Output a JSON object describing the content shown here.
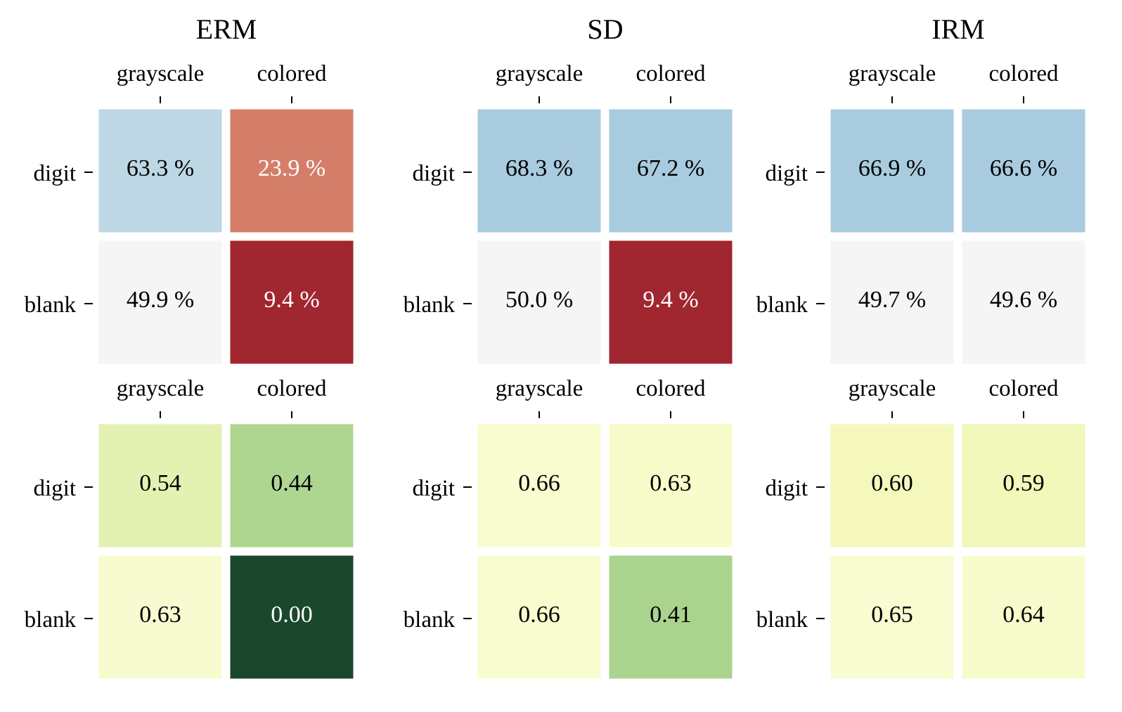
{
  "chart_data": [
    {
      "type": "heatmap",
      "title": "ERM",
      "xlabel": "",
      "ylabel": "",
      "columns": [
        "grayscale",
        "colored"
      ],
      "rows": [
        "digit",
        "blank"
      ],
      "values": [
        [
          63.3,
          23.9
        ],
        [
          49.9,
          9.4
        ]
      ],
      "cell_labels": [
        [
          "63.3 %",
          "23.9 %"
        ],
        [
          "49.9 %",
          "9.4 %"
        ]
      ],
      "cell_colors": [
        [
          "#bdd7e5",
          "#d47e69"
        ],
        [
          "#f5f5f5",
          "#a0262f"
        ]
      ],
      "text_colors": [
        [
          "#000000",
          "#ffffff"
        ],
        [
          "#000000",
          "#ffffff"
        ]
      ],
      "colormap": "diverging red-white-blue"
    },
    {
      "type": "heatmap",
      "title": "SD",
      "xlabel": "",
      "ylabel": "",
      "columns": [
        "grayscale",
        "colored"
      ],
      "rows": [
        "digit",
        "blank"
      ],
      "values": [
        [
          68.3,
          67.2
        ],
        [
          50.0,
          9.4
        ]
      ],
      "cell_labels": [
        [
          "68.3 %",
          "67.2 %"
        ],
        [
          "50.0 %",
          "9.4 %"
        ]
      ],
      "cell_colors": [
        [
          "#a8cbdf",
          "#a8cbdf"
        ],
        [
          "#f5f5f5",
          "#a0262f"
        ]
      ],
      "text_colors": [
        [
          "#000000",
          "#000000"
        ],
        [
          "#000000",
          "#ffffff"
        ]
      ],
      "colormap": "diverging red-white-blue"
    },
    {
      "type": "heatmap",
      "title": "IRM",
      "xlabel": "",
      "ylabel": "",
      "columns": [
        "grayscale",
        "colored"
      ],
      "rows": [
        "digit",
        "blank"
      ],
      "values": [
        [
          66.9,
          66.6
        ],
        [
          49.7,
          49.6
        ]
      ],
      "cell_labels": [
        [
          "66.9 %",
          "66.6 %"
        ],
        [
          "49.7 %",
          "49.6 %"
        ]
      ],
      "cell_colors": [
        [
          "#a8cbdf",
          "#a8cbdf"
        ],
        [
          "#f5f5f5",
          "#f5f5f5"
        ]
      ],
      "text_colors": [
        [
          "#000000",
          "#000000"
        ],
        [
          "#000000",
          "#000000"
        ]
      ],
      "colormap": "diverging red-white-blue"
    },
    {
      "type": "heatmap",
      "title": "",
      "xlabel": "",
      "ylabel": "",
      "columns": [
        "grayscale",
        "colored"
      ],
      "rows": [
        "digit",
        "blank"
      ],
      "values": [
        [
          0.54,
          0.44
        ],
        [
          0.63,
          0.0
        ]
      ],
      "cell_labels": [
        [
          "0.54",
          "0.44"
        ],
        [
          "0.63",
          "0.00"
        ]
      ],
      "cell_colors": [
        [
          "#e3f1b3",
          "#aed691"
        ],
        [
          "#f8fbd0",
          "#1b472d"
        ]
      ],
      "text_colors": [
        [
          "#000000",
          "#000000"
        ],
        [
          "#000000",
          "#ffffff"
        ]
      ],
      "colormap": "yellow-green"
    },
    {
      "type": "heatmap",
      "title": "",
      "xlabel": "",
      "ylabel": "",
      "columns": [
        "grayscale",
        "colored"
      ],
      "rows": [
        "digit",
        "blank"
      ],
      "values": [
        [
          0.66,
          0.63
        ],
        [
          0.66,
          0.41
        ]
      ],
      "cell_labels": [
        [
          "0.66",
          "0.63"
        ],
        [
          "0.66",
          "0.41"
        ]
      ],
      "cell_colors": [
        [
          "#f9fccf",
          "#f8fbca"
        ],
        [
          "#f9fccf",
          "#aad48e"
        ]
      ],
      "text_colors": [
        [
          "#000000",
          "#000000"
        ],
        [
          "#000000",
          "#000000"
        ]
      ],
      "colormap": "yellow-green"
    },
    {
      "type": "heatmap",
      "title": "",
      "xlabel": "",
      "ylabel": "",
      "columns": [
        "grayscale",
        "colored"
      ],
      "rows": [
        "digit",
        "blank"
      ],
      "values": [
        [
          0.6,
          0.59
        ],
        [
          0.65,
          0.64
        ]
      ],
      "cell_labels": [
        [
          "0.60",
          "0.59"
        ],
        [
          "0.65",
          "0.64"
        ]
      ],
      "cell_colors": [
        [
          "#f4f8bd",
          "#f2f7ba"
        ],
        [
          "#f9fbd0",
          "#f8fbcc"
        ]
      ],
      "text_colors": [
        [
          "#000000",
          "#000000"
        ],
        [
          "#000000",
          "#000000"
        ]
      ],
      "colormap": "yellow-green"
    }
  ]
}
